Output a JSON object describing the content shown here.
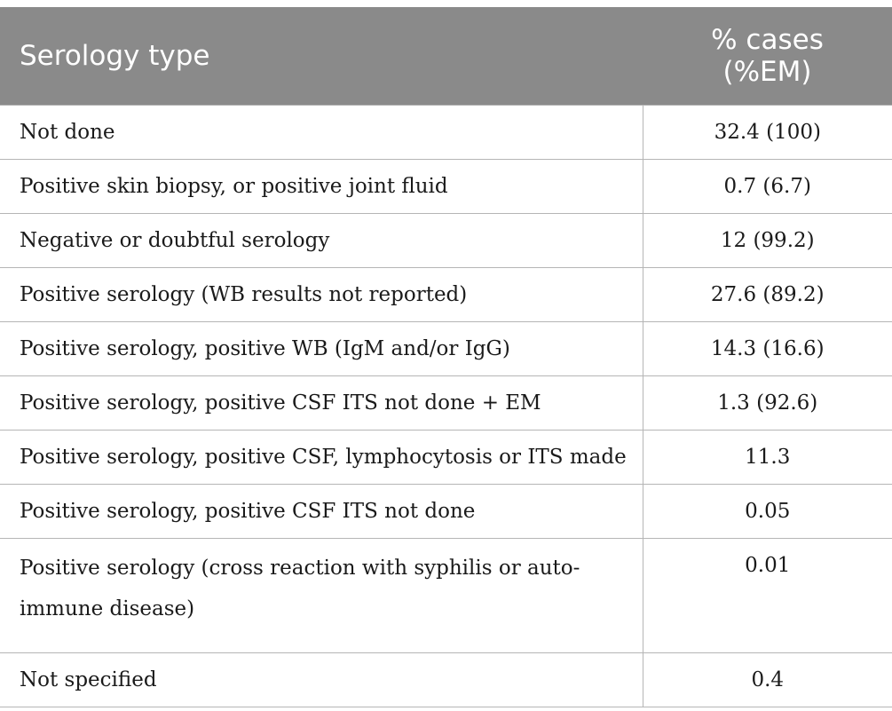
{
  "table": {
    "headers": {
      "label": "Serology type",
      "value_line1": "% cases",
      "value_line2": "(%EM)"
    },
    "rows": [
      {
        "label": "Not done",
        "value": "32.4 (100)"
      },
      {
        "label": "Positive skin biopsy, or positive joint fluid",
        "value": "0.7 (6.7)"
      },
      {
        "label": "Negative or doubtful serology",
        "value": "12 (99.2)"
      },
      {
        "label": "Positive serology (WB results not reported)",
        "value": "27.6 (89.2)"
      },
      {
        "label": "Positive serology, positive WB (IgM and/or IgG)",
        "value": "14.3 (16.6)"
      },
      {
        "label": "Positive serology, positive CSF ITS not done + EM",
        "value": "1.3 (92.6)"
      },
      {
        "label": "Positive serology, positive CSF, lymphocytosis or ITS made",
        "value": "11.3"
      },
      {
        "label": "Positive serology, positive CSF ITS not done",
        "value": "0.05"
      },
      {
        "label": "Positive serology (cross reaction with syphilis or auto-immune disease)",
        "label_line1": "Positive serology (cross reaction with syphilis or auto-",
        "label_line2": "immune disease)",
        "value": "0.01"
      },
      {
        "label": "Not specified",
        "value": "0.4"
      }
    ]
  }
}
